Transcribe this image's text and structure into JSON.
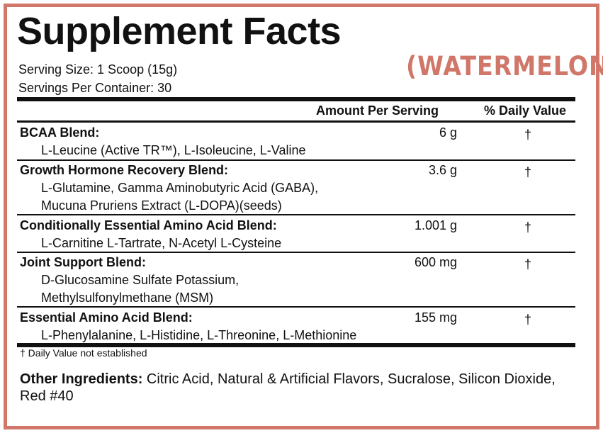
{
  "title": "Supplement Facts",
  "flavor": "(WATERMELON)",
  "serving_size": "Serving Size: 1 Scoop (15g)",
  "servings_per_container": "Servings Per Container: 30",
  "headers": {
    "amount": "Amount Per Serving",
    "daily_value": "% Daily Value"
  },
  "blends": [
    {
      "name": "BCAA Blend:",
      "amount": "6 g",
      "dv": "†",
      "lines": [
        "L-Leucine (Active TR™), L-Isoleucine, L-Valine"
      ]
    },
    {
      "name": "Growth Hormone Recovery Blend:",
      "amount": "3.6 g",
      "dv": "†",
      "lines": [
        "L-Glutamine, Gamma Aminobutyric Acid (GABA),",
        "Mucuna Pruriens Extract (L-DOPA)(seeds)"
      ]
    },
    {
      "name": "Conditionally Essential Amino Acid Blend:",
      "amount": "1.001 g",
      "dv": "†",
      "lines": [
        "L-Carnitine L-Tartrate, N-Acetyl L-Cysteine"
      ]
    },
    {
      "name": "Joint Support Blend:",
      "amount": "600 mg",
      "dv": "†",
      "lines": [
        "D-Glucosamine Sulfate Potassium,",
        "Methylsulfonylmethane (MSM)"
      ]
    },
    {
      "name": "Essential Amino Acid Blend:",
      "amount": "155 mg",
      "dv": "†",
      "lines": [
        "L-Phenylalanine, L-Histidine, L-Threonine, L-Methionine"
      ]
    }
  ],
  "footnote": "† Daily Value not established",
  "other_ingredients": {
    "label": "Other Ingredients:",
    "text": "Citric Acid, Natural & Artificial Flavors, Sucralose, Silicon Dioxide, Red #40"
  },
  "colors": {
    "border": "#d0776a",
    "flavor": "#d0776a",
    "text": "#111111"
  }
}
